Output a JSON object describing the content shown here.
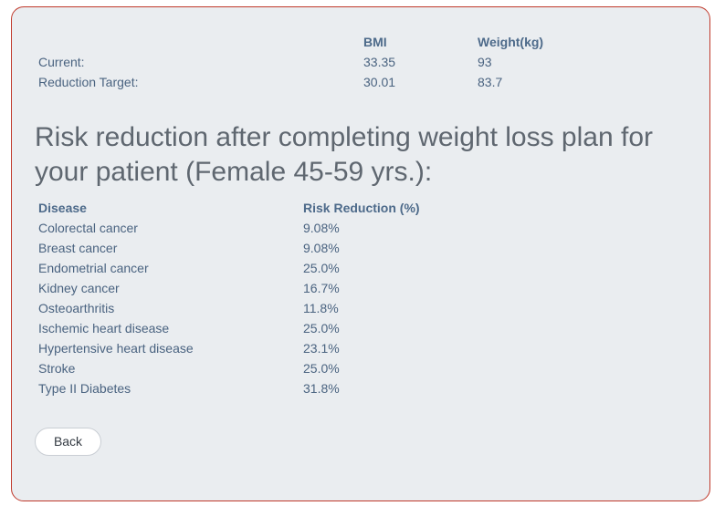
{
  "metrics": {
    "header": {
      "label": "",
      "bmi": "BMI",
      "weight": "Weight(kg)"
    },
    "rows": [
      {
        "label": "Current:",
        "bmi": "33.35",
        "weight": "93"
      },
      {
        "label": "Reduction Target:",
        "bmi": "30.01",
        "weight": "83.7"
      }
    ]
  },
  "heading": "Risk reduction after completing weight loss plan for your patient (Female 45-59 yrs.):",
  "risk_table": {
    "headers": {
      "disease": "Disease",
      "reduction": "Risk Reduction (%)"
    },
    "rows": [
      {
        "disease": "Colorectal cancer",
        "reduction": "9.08%"
      },
      {
        "disease": "Breast cancer",
        "reduction": "9.08%"
      },
      {
        "disease": "Endometrial cancer",
        "reduction": "25.0%"
      },
      {
        "disease": "Kidney cancer",
        "reduction": "16.7%"
      },
      {
        "disease": "Osteoarthritis",
        "reduction": "11.8%"
      },
      {
        "disease": "Ischemic heart disease",
        "reduction": "25.0%"
      },
      {
        "disease": "Hypertensive heart disease",
        "reduction": "23.1%"
      },
      {
        "disease": "Stroke",
        "reduction": "25.0%"
      },
      {
        "disease": "Type II Diabetes",
        "reduction": "31.8%"
      }
    ]
  },
  "buttons": {
    "back_label": "Back"
  },
  "colors": {
    "border": "#c0392b",
    "card_bg": "#eaedf0",
    "text": "#4a6380",
    "heading": "#5f6770"
  }
}
